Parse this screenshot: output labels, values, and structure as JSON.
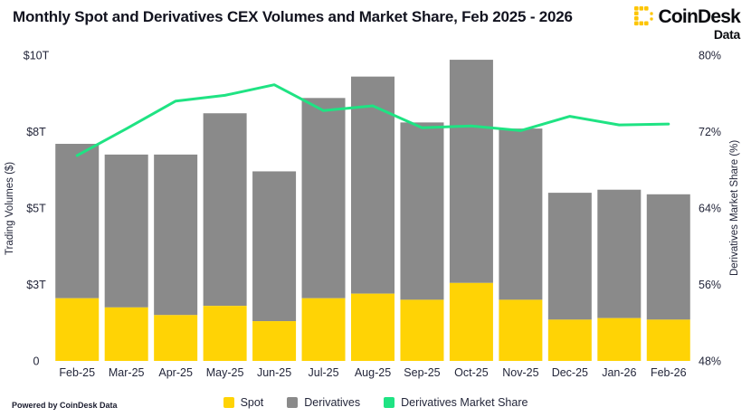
{
  "header": {
    "title": "Monthly Spot and Derivatives CEX Volumes and Market Share, Feb 2025 - 2026",
    "logo": {
      "brand": "CoinDesk",
      "sub": "Data",
      "color": "#FDC500"
    }
  },
  "footer": {
    "powered_by": "Powered by CoinDesk Data"
  },
  "legend": [
    {
      "label": "Spot",
      "color": "#FFD305"
    },
    {
      "label": "Derivatives",
      "color": "#8A8A8A"
    },
    {
      "label": "Derivatives Market Share",
      "color": "#1FE383"
    }
  ],
  "chart_data": {
    "type": "bar",
    "subtype": "stacked-bars-with-line",
    "title": "Monthly Spot and Derivatives CEX Volumes and Market Share, Feb 2025 - 2026",
    "categories": [
      "Feb-25",
      "Mar-25",
      "Apr-25",
      "May-25",
      "Jun-25",
      "Jul-25",
      "Aug-25",
      "Sep-25",
      "Oct-25",
      "Nov-25",
      "Dec-25",
      "Jan-26",
      "Feb-26"
    ],
    "series": [
      {
        "name": "Spot",
        "type": "bar",
        "stack": true,
        "axis": "left",
        "color": "#FFD305",
        "unit": "$T",
        "values": [
          2.05,
          1.75,
          1.5,
          1.8,
          1.3,
          2.05,
          2.2,
          2.0,
          2.55,
          2.0,
          1.35,
          1.4,
          1.35
        ]
      },
      {
        "name": "Derivatives",
        "type": "bar",
        "stack": true,
        "axis": "left",
        "color": "#8A8A8A",
        "unit": "$T",
        "values": [
          5.05,
          5.0,
          5.25,
          6.3,
          4.9,
          6.55,
          7.1,
          5.8,
          7.3,
          5.6,
          4.15,
          4.2,
          4.1
        ]
      },
      {
        "name": "Derivatives Market Share",
        "type": "line",
        "axis": "right",
        "color": "#1FE383",
        "unit": "%",
        "values": [
          69.5,
          72.3,
          75.2,
          75.8,
          76.9,
          74.2,
          74.7,
          72.4,
          72.6,
          72.1,
          73.6,
          72.7,
          72.8
        ]
      }
    ],
    "left_axis": {
      "label": "Trading Volumes ($)",
      "ticks": [
        "$10T",
        "$8T",
        "$5T",
        "$3T",
        "0"
      ],
      "range": [
        0,
        10
      ]
    },
    "right_axis": {
      "label": "Derivatives Market Share (%)",
      "ticks": [
        "80%",
        "72%",
        "64%",
        "56%",
        "48%"
      ],
      "range": [
        48,
        80
      ]
    },
    "grid": false,
    "legend_position": "bottom"
  }
}
